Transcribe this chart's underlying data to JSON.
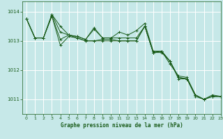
{
  "title": "Graphe pression niveau de la mer (hPa)",
  "bg_color": "#c6e8e8",
  "grid_color": "#ffffff",
  "line_color": "#1a5c1a",
  "xlim": [
    -0.5,
    23
  ],
  "ylim": [
    1010.5,
    1014.35
  ],
  "yticks": [
    1011,
    1012,
    1013,
    1014
  ],
  "xticks": [
    0,
    1,
    2,
    3,
    4,
    5,
    6,
    7,
    8,
    9,
    10,
    11,
    12,
    13,
    14,
    15,
    16,
    17,
    18,
    19,
    20,
    21,
    22,
    23
  ],
  "series": [
    [
      1013.75,
      1013.1,
      1013.1,
      1013.85,
      1012.85,
      1013.15,
      1013.1,
      1013.0,
      1013.0,
      1013.05,
      1013.05,
      1013.0,
      1013.0,
      1013.0,
      1013.5,
      1012.6,
      1012.65,
      1012.3,
      1011.75,
      1011.7,
      1011.15,
      1011.0,
      1011.1,
      1011.1
    ],
    [
      1013.75,
      1013.1,
      1013.1,
      1013.9,
      1013.5,
      1013.2,
      1013.15,
      1013.05,
      1013.4,
      1013.1,
      1013.1,
      1013.1,
      1013.1,
      1013.1,
      1013.5,
      1012.6,
      1012.65,
      1012.3,
      1011.75,
      1011.7,
      1011.15,
      1011.0,
      1011.1,
      1011.1
    ],
    [
      1013.75,
      1013.1,
      1013.1,
      1013.9,
      1013.3,
      1013.2,
      1013.15,
      1013.05,
      1013.45,
      1013.1,
      1013.1,
      1013.3,
      1013.2,
      1013.35,
      1013.6,
      1012.65,
      1012.65,
      1012.2,
      1011.8,
      1011.75,
      1011.15,
      1011.0,
      1011.15,
      1011.1
    ],
    [
      1013.75,
      1013.1,
      1013.1,
      1013.85,
      1013.05,
      1013.2,
      1013.1,
      1013.0,
      1013.0,
      1013.0,
      1013.0,
      1013.0,
      1013.0,
      1013.0,
      1013.5,
      1012.6,
      1012.6,
      1012.3,
      1011.7,
      1011.7,
      1011.1,
      1011.0,
      1011.1,
      1011.1
    ]
  ]
}
